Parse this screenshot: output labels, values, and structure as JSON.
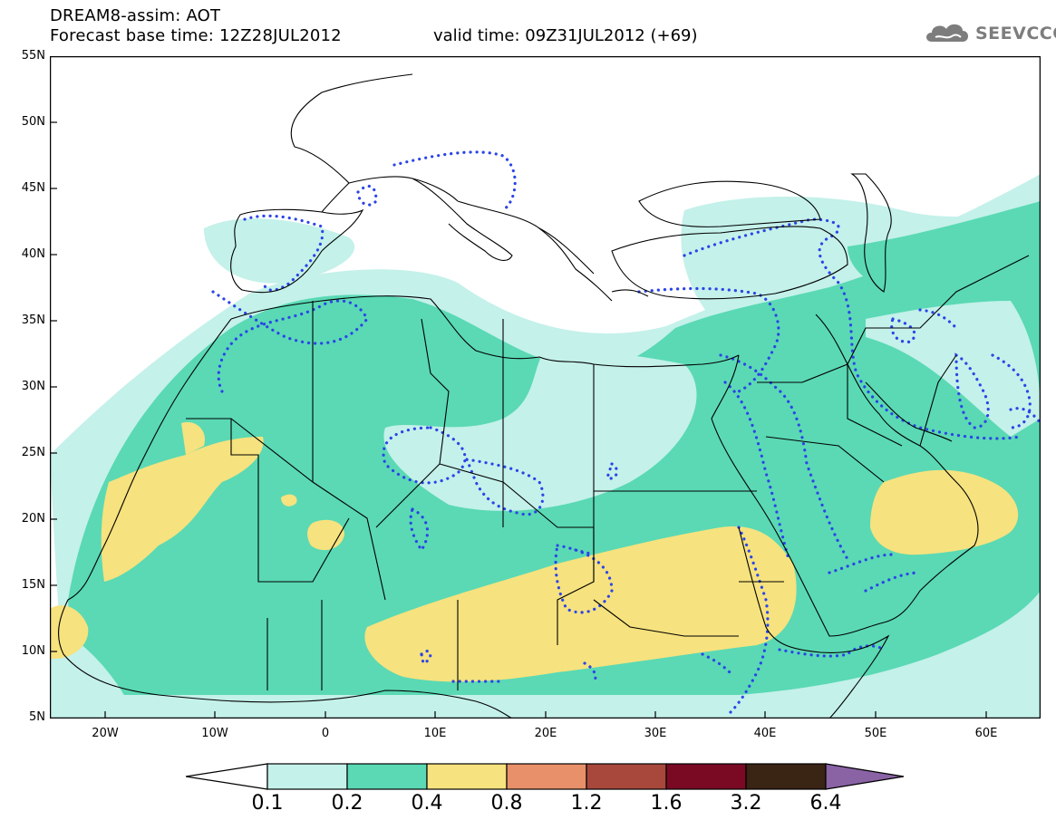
{
  "header": {
    "title": "DREAM8-assim: AOT",
    "base_time": "Forecast base time: 12Z28JUL2012",
    "valid_time": "valid time: 09Z31JUL2012 (+69)"
  },
  "logo": {
    "text": "SEEVCCC",
    "icon": "cloud-icon"
  },
  "map": {
    "projection": "cylindrical",
    "lon_range": [
      -25,
      65
    ],
    "lat_range": [
      5,
      55
    ],
    "lat_labels": [
      "55N",
      "50N",
      "45N",
      "40N",
      "35N",
      "30N",
      "25N",
      "20N",
      "15N",
      "10N",
      "5N"
    ],
    "lon_labels": [
      "20W",
      "10W",
      "0",
      "10E",
      "20E",
      "30E",
      "40E",
      "50E",
      "60E"
    ],
    "contour_color": "#2b44e8",
    "coast_color": "#000000"
  },
  "legend": {
    "labels": [
      "0.1",
      "0.2",
      "0.4",
      "0.8",
      "1.2",
      "1.6",
      "3.2",
      "6.4"
    ],
    "colors": [
      "#ffffff",
      "#c4f1ea",
      "#5ad9b4",
      "#f6e27e",
      "#e8906a",
      "#a8473c",
      "#7a0a24",
      "#3a2414",
      "#8a63a5"
    ]
  }
}
